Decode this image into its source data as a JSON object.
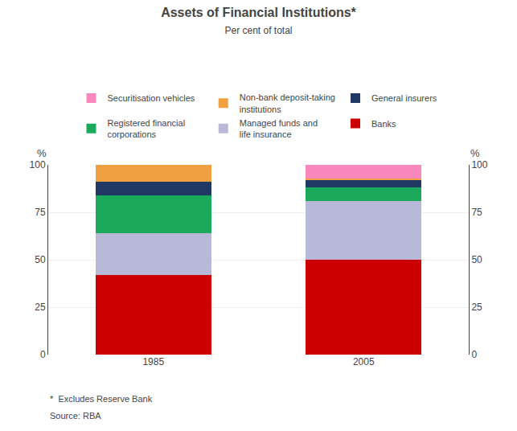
{
  "chart_data": {
    "type": "bar",
    "stacked": true,
    "title": "Assets of Financial Institutions*",
    "subtitle": "Per cent of total",
    "categories": [
      "1985",
      "2005"
    ],
    "series": [
      {
        "name": "Banks",
        "color": "#cc0000",
        "values": [
          42,
          50
        ]
      },
      {
        "name": "Managed funds and\nlife insurance",
        "color": "#b8b8d8",
        "values": [
          22,
          31
        ]
      },
      {
        "name": "Registered financial\ncorporations",
        "color": "#1aaa5a",
        "values": [
          20,
          7
        ]
      },
      {
        "name": "General insurers",
        "color": "#1f3864",
        "values": [
          7,
          4
        ]
      },
      {
        "name": "Non-bank deposit-taking\ninstitutions",
        "color": "#f0a040",
        "values": [
          9,
          1
        ]
      },
      {
        "name": "Securitisation vehicles",
        "color": "#f888bb",
        "values": [
          0,
          7
        ]
      }
    ],
    "ylabel": "%",
    "ylim": [
      0,
      100
    ],
    "yticks": [
      0,
      25,
      50,
      75,
      100
    ],
    "y2label": "%",
    "y2lim": [
      0,
      100
    ],
    "y2ticks": [
      0,
      25,
      50,
      75,
      100
    ],
    "grid": true,
    "legend": "top",
    "footnotes": [
      "*  Excludes Reserve Bank",
      "Source: RBA"
    ]
  }
}
